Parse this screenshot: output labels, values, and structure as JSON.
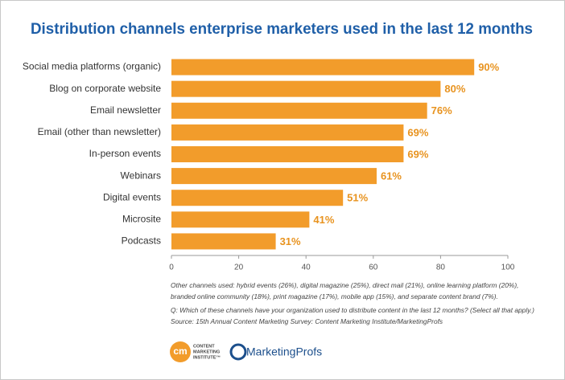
{
  "chart_data": {
    "type": "bar",
    "orientation": "horizontal",
    "title": "Distribution channels enterprise marketers used in the last 12 months",
    "categories": [
      "Social media platforms (organic)",
      "Blog on corporate website",
      "Email newsletter",
      "Email (other than newsletter)",
      "In-person events",
      "Webinars",
      "Digital events",
      "Microsite",
      "Podcasts"
    ],
    "values": [
      90,
      80,
      76,
      69,
      69,
      61,
      51,
      41,
      31
    ],
    "value_labels": [
      "90%",
      "80%",
      "76%",
      "69%",
      "69%",
      "61%",
      "51%",
      "41%",
      "31%"
    ],
    "color": "#f29c2b",
    "label_color": "#e8931f",
    "xlim": [
      0,
      100
    ],
    "xticks": [
      0,
      20,
      40,
      60,
      80,
      100
    ],
    "grid": false,
    "notes": [
      "Other channels used: hybrid events (26%), digital magazine (25%), direct mail (21%), online learning platform (20%),",
      "branded online community (18%), print magazine (17%), mobile app (15%), and separate content brand (7%).",
      "Q: Which of these channels have your organization used to distribute content in the last 12 months? (Select all that apply.)",
      "Source: 15th Annual Content Marketing Survey: Content Marketing Institute/MarketingProfs"
    ],
    "logos": {
      "cmi_mark": "cm",
      "cmi_text": [
        "CONTENT",
        "MARKETING",
        "INSTITUTE™"
      ],
      "mprofs": "MarketingProfs"
    }
  }
}
